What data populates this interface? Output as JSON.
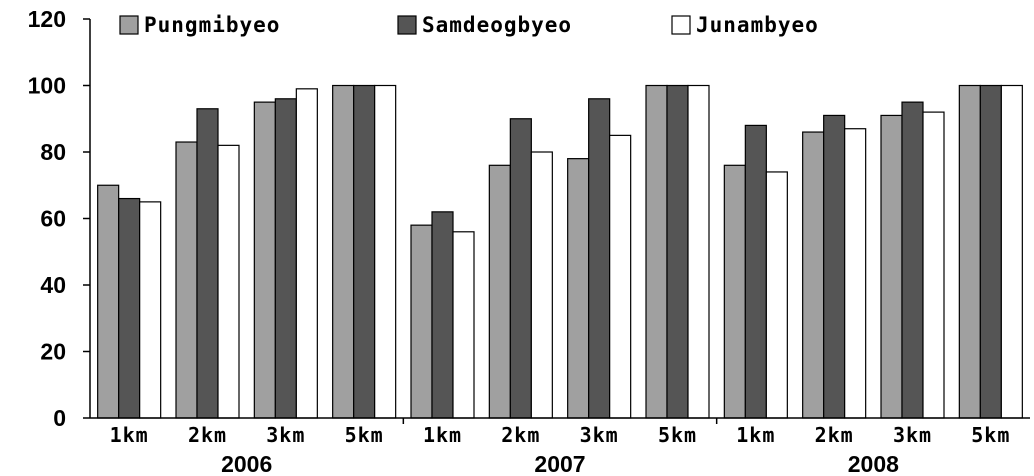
{
  "chart_data": {
    "type": "bar",
    "groups": [
      {
        "label": "2006",
        "categories": [
          "1km",
          "2km",
          "3km",
          "5km"
        ]
      },
      {
        "label": "2007",
        "categories": [
          "1km",
          "2km",
          "3km",
          "5km"
        ]
      },
      {
        "label": "2008",
        "categories": [
          "1km",
          "2km",
          "3km",
          "5km"
        ]
      }
    ],
    "series": [
      {
        "name": "Pungmibyeo",
        "color": "#a0a0a0",
        "values": [
          70,
          83,
          95,
          100,
          58,
          76,
          78,
          100,
          76,
          86,
          91,
          100
        ]
      },
      {
        "name": "Samdeogbyeo",
        "color": "#555555",
        "values": [
          66,
          93,
          96,
          100,
          62,
          90,
          96,
          100,
          88,
          91,
          95,
          100
        ]
      },
      {
        "name": "Junambyeo",
        "color": "#ffffff",
        "values": [
          65,
          82,
          99,
          100,
          56,
          80,
          85,
          100,
          74,
          87,
          92,
          100
        ]
      }
    ],
    "ylim": [
      0,
      120
    ],
    "yticks": [
      0,
      20,
      40,
      60,
      80,
      100,
      120
    ],
    "legend_position": "top",
    "grid": false
  }
}
